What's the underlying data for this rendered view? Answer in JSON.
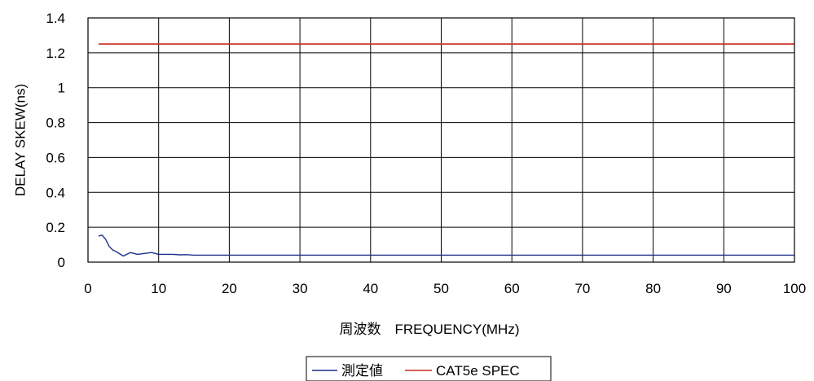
{
  "chart_data": {
    "type": "line",
    "title": "",
    "xlabel": "周波数　FREQUENCY(MHz)",
    "ylabel": "DELAY SKEW(ns)",
    "xlim": [
      0,
      100
    ],
    "ylim": [
      0,
      1.4
    ],
    "x_ticks": [
      0,
      10,
      20,
      30,
      40,
      50,
      60,
      70,
      80,
      90,
      100
    ],
    "y_ticks": [
      0,
      0.2,
      0.4,
      0.6,
      0.8,
      1,
      1.2,
      1.4
    ],
    "x_tick_labels": [
      "0",
      "10",
      "20",
      "30",
      "40",
      "50",
      "60",
      "70",
      "80",
      "90",
      "100"
    ],
    "y_tick_labels": [
      "0",
      "0.2",
      "0.4",
      "0.6",
      "0.8",
      "1",
      "1.2",
      "1.4"
    ],
    "grid": true,
    "legend_position": "bottom-center",
    "series": [
      {
        "name": "測定値",
        "color": "#1f2f8a",
        "x": [
          1.5,
          2,
          2.5,
          3,
          3.5,
          4,
          5,
          6,
          7,
          8,
          9,
          10,
          11,
          12,
          13,
          14,
          15,
          16,
          18,
          20,
          25,
          30,
          35,
          40,
          45,
          50,
          55,
          60,
          65,
          70,
          75,
          80,
          85,
          90,
          95,
          100
        ],
        "y": [
          0.15,
          0.155,
          0.13,
          0.09,
          0.07,
          0.06,
          0.035,
          0.055,
          0.045,
          0.05,
          0.055,
          0.045,
          0.045,
          0.045,
          0.042,
          0.043,
          0.04,
          0.04,
          0.04,
          0.04,
          0.04,
          0.04,
          0.04,
          0.04,
          0.04,
          0.04,
          0.04,
          0.04,
          0.04,
          0.04,
          0.04,
          0.04,
          0.04,
          0.04,
          0.04,
          0.04
        ]
      },
      {
        "name": "CAT5e SPEC",
        "color": "#cc2a1e",
        "x": [
          1.5,
          100
        ],
        "y": [
          1.25,
          1.25
        ]
      }
    ]
  }
}
